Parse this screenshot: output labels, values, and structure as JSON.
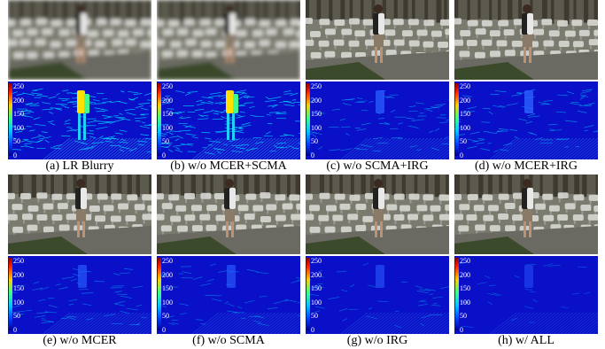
{
  "panels": [
    {
      "caption": "(a) LR Blurry",
      "blurry": true,
      "error": 1.0
    },
    {
      "caption": "(b) w/o MCER+SCMA",
      "blurry": true,
      "error": 0.95
    },
    {
      "caption": "(c) w/o SCMA+IRG",
      "blurry": false,
      "error": 0.45
    },
    {
      "caption": "(d) w/o MCER+IRG",
      "blurry": false,
      "error": 0.5
    },
    {
      "caption": "(e) w/o MCER",
      "blurry": false,
      "error": 0.35
    },
    {
      "caption": "(f) w/o SCMA",
      "blurry": false,
      "error": 0.32
    },
    {
      "caption": "(g) w/o IRG",
      "blurry": false,
      "error": 0.25
    },
    {
      "caption": "(h) w/ ALL",
      "blurry": false,
      "error": 0.15
    }
  ],
  "colorbar_ticks": [
    "250",
    "200",
    "150",
    "100",
    "50",
    "0"
  ],
  "colors": {
    "heat_background": "#0a10c8",
    "heat_high": "#ffe000",
    "heat_mid": "#00e0ff",
    "photo_ground": "#6b6a62",
    "photo_chairs": "#d8d8d4"
  }
}
